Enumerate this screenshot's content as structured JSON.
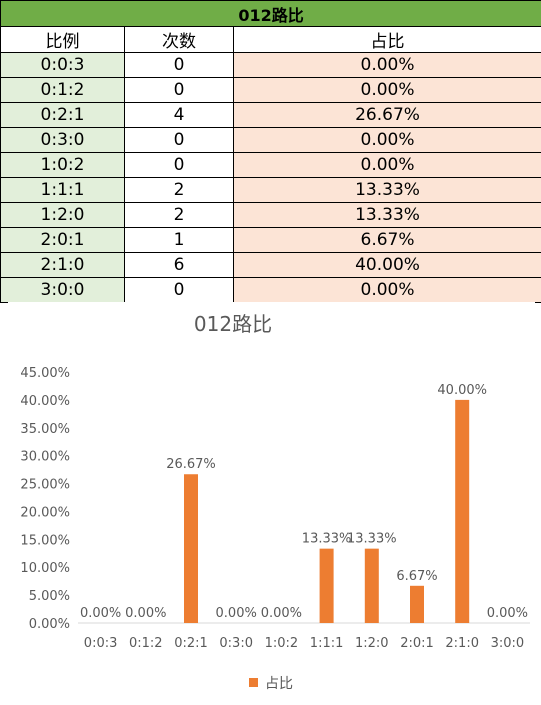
{
  "sheet": {
    "title": "012路比",
    "headers": [
      "比例",
      "次数",
      "占比"
    ],
    "rows": [
      {
        "ratio": "0:0:3",
        "count": "0",
        "pct": "0.00%"
      },
      {
        "ratio": "0:1:2",
        "count": "0",
        "pct": "0.00%"
      },
      {
        "ratio": "0:2:1",
        "count": "4",
        "pct": "26.67%"
      },
      {
        "ratio": "0:3:0",
        "count": "0",
        "pct": "0.00%"
      },
      {
        "ratio": "1:0:2",
        "count": "0",
        "pct": "0.00%"
      },
      {
        "ratio": "1:1:1",
        "count": "2",
        "pct": "13.33%"
      },
      {
        "ratio": "1:2:0",
        "count": "2",
        "pct": "13.33%"
      },
      {
        "ratio": "2:0:1",
        "count": "1",
        "pct": "6.67%"
      },
      {
        "ratio": "2:1:0",
        "count": "6",
        "pct": "40.00%"
      },
      {
        "ratio": "3:0:0",
        "count": "0",
        "pct": "0.00%"
      }
    ]
  },
  "chart_data": {
    "type": "bar",
    "title": "012路比",
    "categories": [
      "0:0:3",
      "0:1:2",
      "0:2:1",
      "0:3:0",
      "1:0:2",
      "1:1:1",
      "1:2:0",
      "2:0:1",
      "2:1:0",
      "3:0:0"
    ],
    "series": [
      {
        "name": "占比",
        "values": [
          0,
          0,
          26.67,
          0,
          0,
          13.33,
          13.33,
          6.67,
          40.0,
          0
        ],
        "color": "#ed7d31"
      }
    ],
    "data_labels": [
      "0.00%",
      "0.00%",
      "26.67%",
      "0.00%",
      "0.00%",
      "13.33%",
      "13.33%",
      "6.67%",
      "40.00%",
      "0.00%"
    ],
    "y_ticks": [
      "0.00%",
      "5.00%",
      "10.00%",
      "15.00%",
      "20.00%",
      "25.00%",
      "30.00%",
      "35.00%",
      "40.00%",
      "45.00%"
    ],
    "ylim": [
      0,
      45
    ],
    "legend_position": "bottom",
    "grid": false
  },
  "colors": {
    "title_fill": "#70ad47",
    "ratio_fill": "#e2efda",
    "pct_fill": "#fce4d6",
    "bar": "#ed7d31"
  }
}
